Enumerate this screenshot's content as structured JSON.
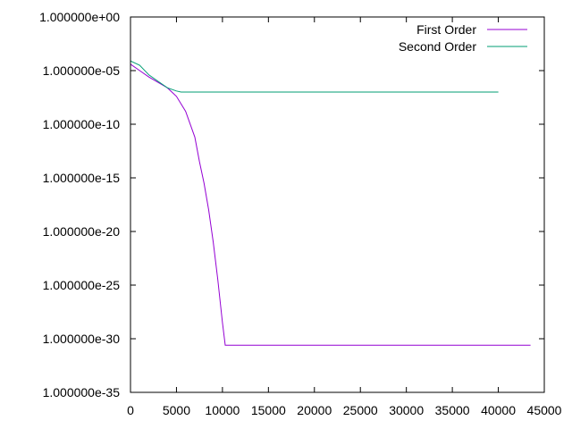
{
  "chart_data": {
    "type": "line",
    "title": "",
    "xlabel": "",
    "ylabel": "",
    "y_scale": "log10",
    "xlim": [
      0,
      45000
    ],
    "ylim_exponent": [
      -35,
      0
    ],
    "x_ticks": [
      0,
      5000,
      10000,
      15000,
      20000,
      25000,
      30000,
      35000,
      40000,
      45000
    ],
    "x_tick_labels": [
      "0",
      "5000",
      "10000",
      "15000",
      "20000",
      "25000",
      "30000",
      "35000",
      "40000",
      "45000"
    ],
    "y_ticks_exponent": [
      0,
      -5,
      -10,
      -15,
      -20,
      -25,
      -30,
      -35
    ],
    "y_tick_labels": [
      "1.000000e+00",
      "1.000000e-05",
      "1.000000e-10",
      "1.000000e-15",
      "1.000000e-20",
      "1.000000e-25",
      "1.000000e-30",
      "1.000000e-35"
    ],
    "grid": false,
    "legend_position": "top-right",
    "series": [
      {
        "name": "First Order",
        "color": "#9400d3",
        "x": [
          0,
          1000,
          2000,
          3000,
          4000,
          5000,
          6000,
          7000,
          7500,
          8000,
          8500,
          9000,
          9500,
          10000,
          10300,
          20000,
          30000,
          40000,
          43500
        ],
        "y_exponent": [
          -4.4,
          -5.0,
          -5.6,
          -6.1,
          -6.6,
          -7.4,
          -8.8,
          -11.2,
          -13.5,
          -15.5,
          -18.0,
          -21.0,
          -24.5,
          -28.5,
          -30.6,
          -30.6,
          -30.6,
          -30.6,
          -30.6
        ]
      },
      {
        "name": "Second Order",
        "color": "#009e73",
        "x": [
          0,
          1000,
          2000,
          3000,
          4000,
          5000,
          5500,
          10000,
          15000,
          20000,
          25000,
          30000,
          35000,
          40000
        ],
        "y_exponent": [
          -4.1,
          -4.5,
          -5.4,
          -6.0,
          -6.6,
          -6.9,
          -7.0,
          -7.0,
          -7.0,
          -7.0,
          -7.0,
          -7.0,
          -7.0,
          -7.0
        ]
      }
    ]
  }
}
